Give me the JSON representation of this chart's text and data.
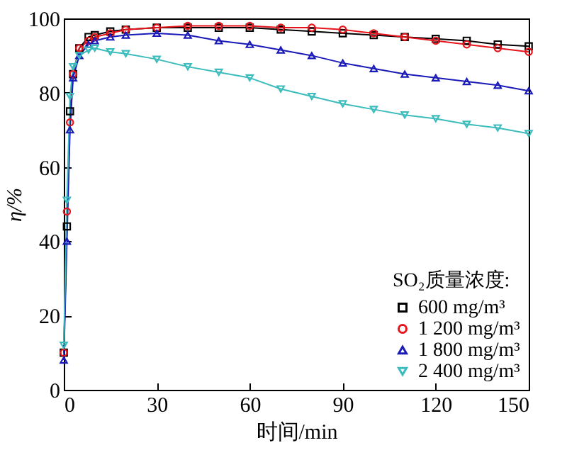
{
  "chart_data": {
    "type": "line",
    "xlabel": "时间/min",
    "ylabel": "η/%",
    "legend_title": "SO₂质量浓度:",
    "legend": "bottom right",
    "grid": false,
    "x": [
      0,
      1,
      2,
      3,
      5,
      8,
      10,
      15,
      20,
      30,
      40,
      50,
      60,
      70,
      80,
      90,
      100,
      110,
      120,
      130,
      140,
      150
    ],
    "xlim": [
      0,
      150
    ],
    "xticks": [
      0,
      30,
      60,
      90,
      120,
      150
    ],
    "ylim": [
      0,
      100
    ],
    "yticks": [
      0,
      20,
      40,
      60,
      80,
      100
    ],
    "series": [
      {
        "name": "600 mg/m³",
        "color": "#000000",
        "marker": "square",
        "values": [
          10,
          44,
          75,
          85,
          92,
          95,
          95.5,
          96.5,
          97,
          97.5,
          97.5,
          97.5,
          97.5,
          97,
          96.5,
          96,
          95.5,
          95,
          94.5,
          94,
          93,
          92.5
        ]
      },
      {
        "name": "1 200 mg/m³",
        "color": "#e8141c",
        "marker": "circle",
        "values": [
          10,
          48,
          72,
          85,
          92,
          94,
          95,
          96,
          97,
          97.5,
          98,
          98,
          98,
          97.5,
          97.5,
          97,
          96,
          95,
          94,
          93,
          92,
          91
        ]
      },
      {
        "name": "1 800 mg/m³",
        "color": "#1a1ab8",
        "marker": "triangle",
        "values": [
          8,
          40,
          70,
          84,
          90,
          93,
          94,
          95,
          95.5,
          96,
          95.5,
          94,
          93,
          91.5,
          90,
          88,
          86.5,
          85,
          84,
          83,
          82,
          80.5
        ]
      },
      {
        "name": "2 400 mg/m³",
        "color": "#3cbcbc",
        "marker": "triangle-down",
        "values": [
          12,
          51,
          79,
          87,
          90,
          91.5,
          92,
          91,
          90.5,
          89,
          87,
          85.5,
          84,
          81,
          79,
          77,
          75.5,
          74,
          73,
          71.5,
          70.5,
          69
        ]
      }
    ]
  }
}
